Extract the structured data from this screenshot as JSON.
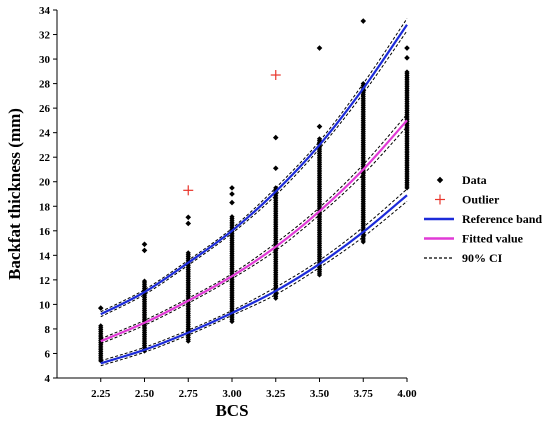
{
  "chart_data": {
    "type": "scatter",
    "xlabel": "BCS",
    "ylabel": "Backfat thickness (mm)",
    "xlim": [
      2.0,
      4.0
    ],
    "ylim": [
      4,
      34
    ],
    "x_ticks": [
      2.25,
      2.5,
      2.75,
      3.0,
      3.25,
      3.5,
      3.75,
      4.0
    ],
    "x_tick_labels": [
      "2.25",
      "2.50",
      "2.75",
      "3.00",
      "3.25",
      "3.50",
      "3.75",
      "4.00"
    ],
    "y_ticks": [
      4,
      6,
      8,
      10,
      12,
      14,
      16,
      18,
      20,
      22,
      24,
      26,
      28,
      30,
      32,
      34
    ],
    "grid": false,
    "legend_position": "right",
    "legend": [
      {
        "label": "Data",
        "marker": "diamond",
        "color": "#000000"
      },
      {
        "label": "Outlier",
        "marker": "plus",
        "color": "#e8352b"
      },
      {
        "label": "Reference band",
        "line": "solid",
        "color": "#1c2bd9"
      },
      {
        "label": "Fitted value",
        "line": "solid",
        "color": "#e13ad6"
      },
      {
        "label": "90% CI",
        "line": "dashed",
        "color": "#000000"
      }
    ],
    "data_groups": [
      {
        "x": 2.25,
        "min": 5.4,
        "max": 8.3,
        "extra": [
          9.7
        ]
      },
      {
        "x": 2.5,
        "min": 6.2,
        "max": 12.0,
        "extra": [
          14.4,
          14.9
        ]
      },
      {
        "x": 2.75,
        "min": 7.0,
        "max": 14.2,
        "extra": [
          16.6,
          17.1
        ]
      },
      {
        "x": 3.0,
        "min": 8.6,
        "max": 17.2,
        "extra": [
          18.3,
          19.0,
          19.5
        ]
      },
      {
        "x": 3.25,
        "min": 10.5,
        "max": 19.5,
        "extra": [
          21.1,
          23.6
        ]
      },
      {
        "x": 3.5,
        "min": 12.4,
        "max": 23.5,
        "extra": [
          24.5,
          30.9
        ]
      },
      {
        "x": 3.75,
        "min": 15.1,
        "max": 28.0,
        "extra": [
          33.1
        ]
      },
      {
        "x": 4.0,
        "min": 19.5,
        "max": 29.0,
        "extra": [
          30.1,
          30.9
        ]
      }
    ],
    "outliers": [
      {
        "x": 2.75,
        "y": 19.3
      },
      {
        "x": 3.25,
        "y": 28.7
      }
    ],
    "series": [
      {
        "name": "Reference band",
        "x": [
          2.25,
          2.5,
          2.75,
          3.0,
          3.25,
          3.5,
          3.75,
          4.0
        ],
        "values": [
          9.2,
          11.0,
          13.4,
          16.0,
          19.2,
          23.0,
          27.6,
          32.8
        ]
      },
      {
        "name": "Fitted value",
        "x": [
          2.25,
          2.5,
          2.75,
          3.0,
          3.25,
          3.5,
          3.75,
          4.0
        ],
        "values": [
          7.0,
          8.5,
          10.3,
          12.3,
          14.7,
          17.6,
          21.0,
          25.0
        ]
      },
      {
        "name": "Reference band",
        "x": [
          2.25,
          2.5,
          2.75,
          3.0,
          3.25,
          3.5,
          3.75,
          4.0
        ],
        "values": [
          5.2,
          6.3,
          7.7,
          9.3,
          11.1,
          13.3,
          15.9,
          18.9
        ]
      }
    ],
    "ci_halfwidth": [
      0.2,
      0.2,
      0.2,
      0.2,
      0.3,
      0.3,
      0.4,
      0.5
    ]
  }
}
